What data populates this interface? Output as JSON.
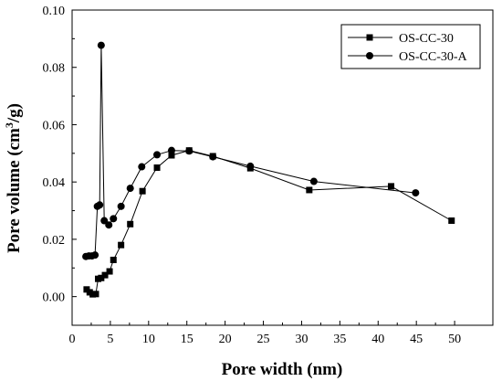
{
  "chart_data": {
    "type": "line",
    "title": "",
    "xlabel": "Pore width (nm)",
    "ylabel_main": "Pore volume (cm",
    "ylabel_sup": "3",
    "ylabel_end": "/g)",
    "xlim": [
      0,
      55
    ],
    "ylim": [
      -0.01,
      0.1
    ],
    "xticks": [
      0,
      5,
      10,
      15,
      20,
      25,
      30,
      35,
      40,
      45,
      50
    ],
    "yticks": [
      0.0,
      0.02,
      0.04,
      0.06,
      0.08,
      0.1
    ],
    "ytick_labels": [
      "0.00",
      "0.02",
      "0.04",
      "0.06",
      "0.08",
      "0.10"
    ],
    "grid": false,
    "legend_position": "top-right",
    "series": [
      {
        "name": "OS-CC-30",
        "marker": "square",
        "color": "#000000",
        "x": [
          1.9,
          2.3,
          2.7,
          3.1,
          3.4,
          3.8,
          4.3,
          4.9,
          5.4,
          6.4,
          7.6,
          9.2,
          11.1,
          13.0,
          15.3,
          18.4,
          23.3,
          31.0,
          41.7,
          49.6
        ],
        "y": [
          0.0025,
          0.0015,
          0.0008,
          0.0009,
          0.0062,
          0.0065,
          0.0075,
          0.0088,
          0.0128,
          0.018,
          0.0253,
          0.0368,
          0.045,
          0.0493,
          0.051,
          0.049,
          0.0448,
          0.0372,
          0.0385,
          0.0265
        ]
      },
      {
        "name": "OS-CC-30-A",
        "marker": "circle",
        "color": "#000000",
        "x": [
          1.8,
          2.2,
          2.6,
          3.0,
          3.3,
          3.6,
          3.8,
          4.2,
          4.8,
          5.4,
          6.4,
          7.6,
          9.1,
          11.1,
          13.0,
          15.3,
          18.4,
          23.3,
          31.6,
          44.9
        ],
        "y": [
          0.014,
          0.0142,
          0.0142,
          0.0145,
          0.0315,
          0.032,
          0.0877,
          0.0265,
          0.025,
          0.0272,
          0.0315,
          0.0378,
          0.0453,
          0.0495,
          0.051,
          0.0508,
          0.0488,
          0.0455,
          0.0402,
          0.0362
        ]
      }
    ]
  }
}
